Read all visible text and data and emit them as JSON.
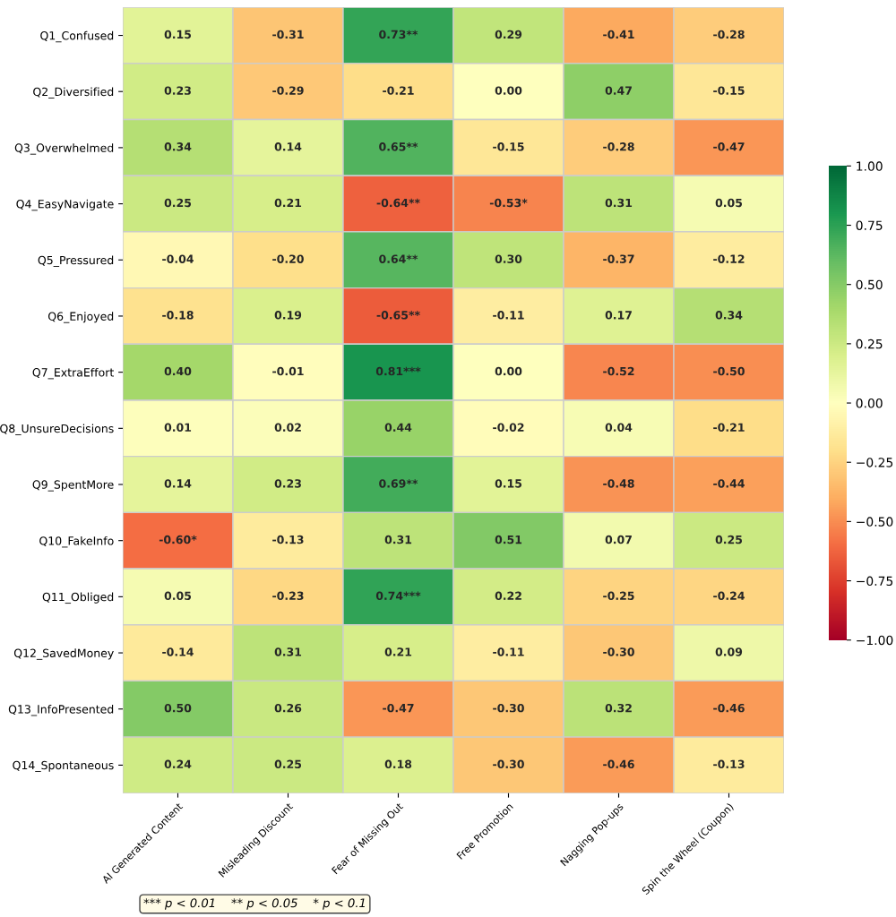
{
  "chart_data": {
    "type": "heatmap",
    "categories": [
      "AI Generated Content",
      "Misleading Discount",
      "Fear of Missing Out",
      "Free Promotion",
      "Nagging Pop-ups",
      "Spin the Wheel (Coupon)"
    ],
    "y_categories": [
      "Q1_Confused",
      "Q2_Diversified",
      "Q3_Overwhelmed",
      "Q4_EasyNavigate",
      "Q5_Pressured",
      "Q6_Enjoyed",
      "Q7_ExtraEffort",
      "Q8_UnsureDecisions",
      "Q9_SpentMore",
      "Q10_FakeInfo",
      "Q11_Obliged",
      "Q12_SavedMoney",
      "Q13_InfoPresented",
      "Q14_Spontaneous"
    ],
    "cells": [
      [
        0.15,
        -0.31,
        0.73,
        0.29,
        -0.41,
        -0.28
      ],
      [
        0.23,
        -0.29,
        -0.21,
        0.0,
        0.47,
        -0.15
      ],
      [
        0.34,
        0.14,
        0.65,
        -0.15,
        -0.28,
        -0.47
      ],
      [
        0.25,
        0.21,
        -0.64,
        -0.53,
        0.31,
        0.05
      ],
      [
        -0.04,
        -0.2,
        0.64,
        0.3,
        -0.37,
        -0.12
      ],
      [
        -0.18,
        0.19,
        -0.65,
        -0.11,
        0.17,
        0.34
      ],
      [
        0.4,
        -0.01,
        0.81,
        0.0,
        -0.52,
        -0.5
      ],
      [
        0.01,
        0.02,
        0.44,
        -0.02,
        0.04,
        -0.21
      ],
      [
        0.14,
        0.23,
        0.69,
        0.15,
        -0.48,
        -0.44
      ],
      [
        -0.6,
        -0.13,
        0.31,
        0.51,
        0.07,
        0.25
      ],
      [
        0.05,
        -0.23,
        0.74,
        0.22,
        -0.25,
        -0.24
      ],
      [
        -0.14,
        0.31,
        0.21,
        -0.11,
        -0.3,
        0.09
      ],
      [
        0.5,
        0.26,
        -0.47,
        -0.3,
        0.32,
        -0.46
      ],
      [
        0.24,
        0.25,
        0.18,
        -0.3,
        -0.46,
        -0.13
      ]
    ],
    "cell_labels": [
      [
        "0.15",
        "-0.31",
        "0.73**",
        "0.29",
        "-0.41",
        "-0.28"
      ],
      [
        "0.23",
        "-0.29",
        "-0.21",
        "0.00",
        "0.47",
        "-0.15"
      ],
      [
        "0.34",
        "0.14",
        "0.65**",
        "-0.15",
        "-0.28",
        "-0.47"
      ],
      [
        "0.25",
        "0.21",
        "-0.64**",
        "-0.53*",
        "0.31",
        "0.05"
      ],
      [
        "-0.04",
        "-0.20",
        "0.64**",
        "0.30",
        "-0.37",
        "-0.12"
      ],
      [
        "-0.18",
        "0.19",
        "-0.65**",
        "-0.11",
        "0.17",
        "0.34"
      ],
      [
        "0.40",
        "-0.01",
        "0.81***",
        "0.00",
        "-0.52",
        "-0.50"
      ],
      [
        "0.01",
        "0.02",
        "0.44",
        "-0.02",
        "0.04",
        "-0.21"
      ],
      [
        "0.14",
        "0.23",
        "0.69**",
        "0.15",
        "-0.48",
        "-0.44"
      ],
      [
        "-0.60*",
        "-0.13",
        "0.31",
        "0.51",
        "0.07",
        "0.25"
      ],
      [
        "0.05",
        "-0.23",
        "0.74***",
        "0.22",
        "-0.25",
        "-0.24"
      ],
      [
        "-0.14",
        "0.31",
        "0.21",
        "-0.11",
        "-0.30",
        "0.09"
      ],
      [
        "0.50",
        "0.26",
        "-0.47",
        "-0.30",
        "0.32",
        "-0.46"
      ],
      [
        "0.24",
        "0.25",
        "0.18",
        "-0.30",
        "-0.46",
        "-0.13"
      ]
    ],
    "clim": [
      -1.0,
      1.0
    ],
    "cticks": [
      {
        "value": -1.0,
        "label": "−1.00"
      },
      {
        "value": -0.75,
        "label": "−0.75"
      },
      {
        "value": -0.5,
        "label": "−0.50"
      },
      {
        "value": -0.25,
        "label": "−0.25"
      },
      {
        "value": 0.0,
        "label": "0.00"
      },
      {
        "value": 0.25,
        "label": "0.25"
      },
      {
        "value": 0.5,
        "label": "0.50"
      },
      {
        "value": 0.75,
        "label": "0.75"
      },
      {
        "value": 1.0,
        "label": "1.00"
      }
    ],
    "annotations": [
      "*** p < 0.01    ** p < 0.05    * p < 0.1"
    ]
  }
}
